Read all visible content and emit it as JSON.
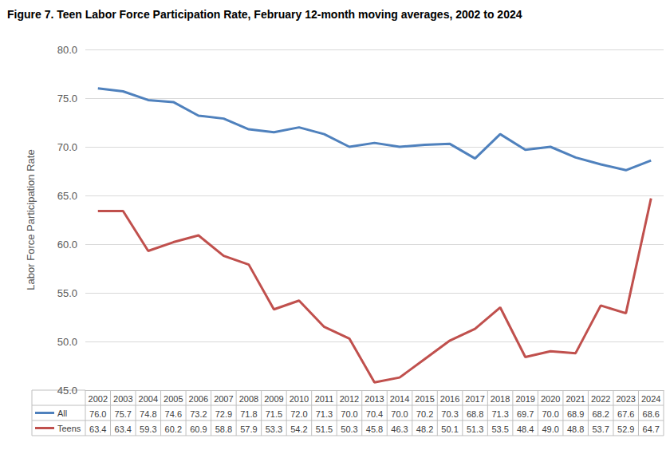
{
  "chart_data": {
    "type": "line",
    "title": "Figure 7. Teen Labor Force Participation Rate, February 12-month moving averages, 2002 to 2024",
    "y_label": "Labor Force Participation Rate",
    "categories": [
      "2002",
      "2003",
      "2004",
      "2005",
      "2006",
      "2007",
      "2008",
      "2009",
      "2010",
      "2011",
      "2012",
      "2013",
      "2014",
      "2015",
      "2016",
      "2017",
      "2018",
      "2019",
      "2020",
      "2021",
      "2022",
      "2023",
      "2024"
    ],
    "series": [
      {
        "name": "All",
        "color": "#4f81bd",
        "values": [
          76.0,
          75.7,
          74.8,
          74.6,
          73.2,
          72.9,
          71.8,
          71.5,
          72.0,
          71.3,
          70.0,
          70.4,
          70.0,
          70.2,
          70.3,
          68.8,
          71.3,
          69.7,
          70.0,
          68.9,
          68.2,
          67.6,
          68.6
        ],
        "value_labels": [
          "76.0",
          "75.7",
          "74.8",
          "74.6",
          "73.2",
          "72.9",
          "71.8",
          "71.5",
          "72.0",
          "71.3",
          "70.0",
          "70.4",
          "70.0",
          "70.2",
          "70.3",
          "68.8",
          "71.3",
          "69.7",
          "70.0",
          "68.9",
          "68.2",
          "67.6",
          "68.6"
        ]
      },
      {
        "name": "Teens",
        "color": "#c0504d",
        "values": [
          63.4,
          63.4,
          59.3,
          60.2,
          60.9,
          58.8,
          57.9,
          53.3,
          54.2,
          51.5,
          50.3,
          45.8,
          46.3,
          48.2,
          50.1,
          51.3,
          53.5,
          48.4,
          49.0,
          48.8,
          53.7,
          52.9,
          64.7
        ],
        "value_labels": [
          "63.4",
          "63.4",
          "59.3",
          "60.2",
          "60.9",
          "58.8",
          "57.9",
          "53.3",
          "54.2",
          "51.5",
          "50.3",
          "45.8",
          "46.3",
          "48.2",
          "50.1",
          "51.3",
          "53.5",
          "48.4",
          "49.0",
          "48.8",
          "53.7",
          "52.9",
          "64.7"
        ]
      }
    ],
    "ylim": [
      45,
      80
    ],
    "yticks": [
      {
        "value": 45,
        "label": "45.0"
      },
      {
        "value": 50,
        "label": "50.0"
      },
      {
        "value": 55,
        "label": "55.0"
      },
      {
        "value": 60,
        "label": "60.0"
      },
      {
        "value": 65,
        "label": "65.0"
      },
      {
        "value": 70,
        "label": "70.0"
      },
      {
        "value": 75,
        "label": "75.0"
      },
      {
        "value": 80,
        "label": "80.0"
      }
    ],
    "grid": true
  }
}
